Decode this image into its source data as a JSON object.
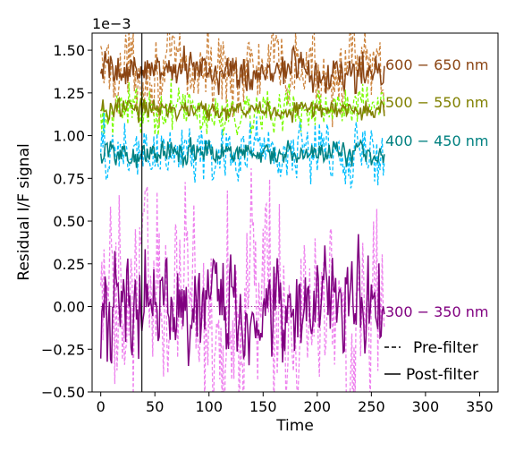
{
  "chart_data": {
    "type": "line",
    "xlabel": "Time",
    "ylabel": "Residual I/F signal",
    "y_offset_label": "1e−3",
    "xlim": [
      -8,
      367
    ],
    "ylim": [
      -0.5,
      1.6
    ],
    "x_ticks": [
      0,
      50,
      100,
      150,
      200,
      250,
      300,
      350
    ],
    "x_tick_labels": [
      "0",
      "50",
      "100",
      "150",
      "200",
      "250",
      "300",
      "350"
    ],
    "y_ticks": [
      -0.5,
      -0.25,
      0.0,
      0.25,
      0.5,
      0.75,
      1.0,
      1.25,
      1.5
    ],
    "y_tick_labels": [
      "−0.50",
      "−0.25",
      "0.00",
      "0.25",
      "0.50",
      "0.75",
      "1.00",
      "1.25",
      "1.50"
    ],
    "vertical_line_x": 38,
    "n_points": 263,
    "band_labels": [
      "600 − 650 nm",
      "500 − 550 nm",
      "400 − 450 nm",
      "300 − 350 nm"
    ],
    "legend": [
      {
        "label": "Pre-filter",
        "style": "dashed"
      },
      {
        "label": "Post-filter",
        "style": "solid"
      }
    ],
    "series": [
      {
        "band": "600 − 650 nm",
        "baseline": 1.38,
        "pre_color": "#cd853f",
        "post_color": "#8b4513",
        "pre_amp": 0.12,
        "post_amp": 0.045
      },
      {
        "band": "500 − 550 nm",
        "baseline": 1.15,
        "pre_color": "#7cfc00",
        "post_color": "#808000",
        "pre_amp": 0.07,
        "post_amp": 0.025
      },
      {
        "band": "400 − 450 nm",
        "baseline": 0.9,
        "pre_color": "#00bfff",
        "post_color": "#008080",
        "pre_amp": 0.09,
        "post_amp": 0.03
      },
      {
        "band": "300 − 350 nm",
        "baseline": 0.0,
        "pre_color": "#ee82ee",
        "post_color": "#800080",
        "pre_amp": 0.32,
        "post_amp": 0.13
      }
    ]
  }
}
